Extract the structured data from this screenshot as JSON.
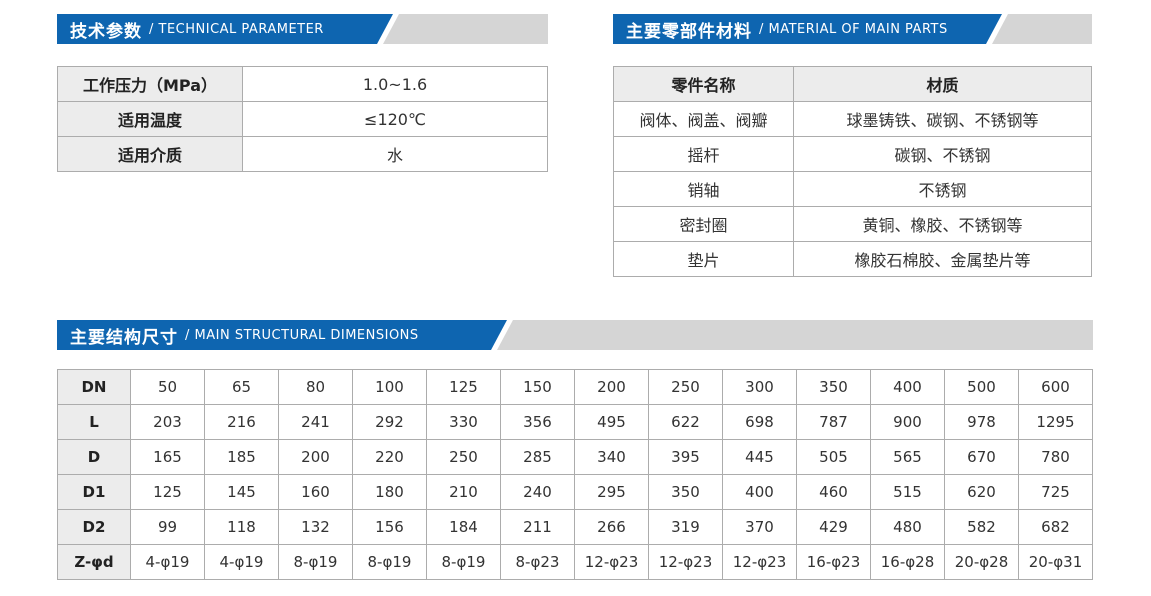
{
  "colors": {
    "banner_blue": "#0e65b0",
    "banner_gray": "#d5d5d5",
    "header_cell_bg": "#ececec",
    "table_border": "#acacac"
  },
  "sections": {
    "technical": {
      "title_zh": "技术参数",
      "title_en": "/ TECHNICAL PARAMETER",
      "rows": [
        {
          "label": "工作压力（MPa）",
          "value": "1.0~1.6"
        },
        {
          "label": "适用温度",
          "value": "≤120℃"
        },
        {
          "label": "适用介质",
          "value": "水"
        }
      ]
    },
    "materials": {
      "title_zh": "主要零部件材料",
      "title_en": "/ MATERIAL OF MAIN PARTS",
      "header": {
        "part": "零件名称",
        "material": "材质"
      },
      "rows": [
        {
          "part": "阀体、阀盖、阀瓣",
          "material": "球墨铸铁、碳钢、不锈钢等"
        },
        {
          "part": "摇杆",
          "material": "碳钢、不锈钢"
        },
        {
          "part": "销轴",
          "material": "不锈钢"
        },
        {
          "part": "密封圈",
          "material": "黄铜、橡胶、不锈钢等"
        },
        {
          "part": "垫片",
          "material": "橡胶石棉胶、金属垫片等"
        }
      ]
    },
    "dimensions": {
      "title_zh": "主要结构尺寸",
      "title_en": "/ MAIN STRUCTURAL DIMENSIONS",
      "rows": [
        {
          "label": "DN",
          "values": [
            "50",
            "65",
            "80",
            "100",
            "125",
            "150",
            "200",
            "250",
            "300",
            "350",
            "400",
            "500",
            "600"
          ]
        },
        {
          "label": "L",
          "values": [
            "203",
            "216",
            "241",
            "292",
            "330",
            "356",
            "495",
            "622",
            "698",
            "787",
            "900",
            "978",
            "1295"
          ]
        },
        {
          "label": "D",
          "values": [
            "165",
            "185",
            "200",
            "220",
            "250",
            "285",
            "340",
            "395",
            "445",
            "505",
            "565",
            "670",
            "780"
          ]
        },
        {
          "label": "D1",
          "values": [
            "125",
            "145",
            "160",
            "180",
            "210",
            "240",
            "295",
            "350",
            "400",
            "460",
            "515",
            "620",
            "725"
          ]
        },
        {
          "label": "D2",
          "values": [
            "99",
            "118",
            "132",
            "156",
            "184",
            "211",
            "266",
            "319",
            "370",
            "429",
            "480",
            "582",
            "682"
          ]
        },
        {
          "label": "Z-φd",
          "values": [
            "4-φ19",
            "4-φ19",
            "8-φ19",
            "8-φ19",
            "8-φ19",
            "8-φ23",
            "12-φ23",
            "12-φ23",
            "12-φ23",
            "16-φ23",
            "16-φ28",
            "20-φ28",
            "20-φ31"
          ]
        }
      ]
    }
  }
}
